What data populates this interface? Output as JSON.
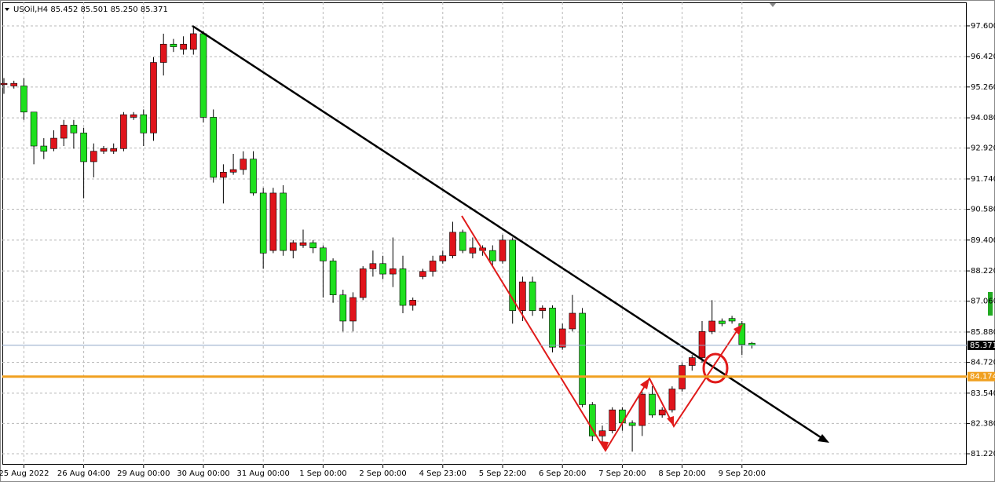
{
  "chart_data": {
    "type": "candlestick",
    "title": "USOil,H4  85.452 85.501 85.250 85.371",
    "categories": [
      null,
      null,
      "25 Aug 2022",
      null,
      null,
      null,
      null,
      null,
      "26 Aug 04:00",
      null,
      null,
      null,
      null,
      null,
      "29 Aug 00:00",
      null,
      null,
      null,
      null,
      null,
      "30 Aug 00:00",
      null,
      null,
      null,
      null,
      null,
      "31 Aug 00:00",
      null,
      null,
      null,
      null,
      null,
      "1 Sep 00:00",
      null,
      null,
      null,
      null,
      null,
      "2 Sep 00:00",
      null,
      null,
      null,
      null,
      null,
      "4 Sep 23:00",
      null,
      null,
      null,
      null,
      null,
      "5 Sep 22:00",
      null,
      null,
      null,
      null,
      null,
      "6 Sep 20:00",
      null,
      null,
      null,
      null,
      null,
      "7 Sep 20:00",
      null,
      null,
      null,
      null,
      null,
      "8 Sep 20:00",
      null,
      null,
      null,
      null,
      null,
      "9 Sep 20:00",
      null
    ],
    "open": [
      95.35,
      95.3,
      95.3,
      94.3,
      93.0,
      92.9,
      93.3,
      93.8,
      93.5,
      92.4,
      92.8,
      92.8,
      92.9,
      94.1,
      94.2,
      93.5,
      96.2,
      96.9,
      96.7,
      96.7,
      97.3,
      94.1,
      91.8,
      92.0,
      92.1,
      92.5,
      91.2,
      89.0,
      91.2,
      89.0,
      89.2,
      89.3,
      89.1,
      88.6,
      87.3,
      86.3,
      87.2,
      88.3,
      88.5,
      88.1,
      88.3,
      86.9,
      88.0,
      88.2,
      88.6,
      88.8,
      89.7,
      88.9,
      89.0,
      89.0,
      88.6,
      89.4,
      86.7,
      87.8,
      86.7,
      86.8,
      85.3,
      86.0,
      86.6,
      83.1,
      81.9,
      82.1,
      82.9,
      82.4,
      82.3,
      83.5,
      82.7,
      82.9,
      83.7,
      84.6,
      84.9,
      85.9,
      86.3,
      86.4,
      86.2,
      85.452
    ],
    "high": [
      95.6,
      95.5,
      95.6,
      94.3,
      93.3,
      93.6,
      94.0,
      94.0,
      93.7,
      93.1,
      93.0,
      93.1,
      94.3,
      94.3,
      94.4,
      96.4,
      97.3,
      97.1,
      97.2,
      97.6,
      97.4,
      94.4,
      92.3,
      92.7,
      92.8,
      92.8,
      91.4,
      91.4,
      91.5,
      89.4,
      89.8,
      89.4,
      89.2,
      88.7,
      87.5,
      87.4,
      88.4,
      89.0,
      88.8,
      89.5,
      88.8,
      87.2,
      88.3,
      88.8,
      89.0,
      90.1,
      89.8,
      89.5,
      89.2,
      89.2,
      89.6,
      89.5,
      88.0,
      88.0,
      86.9,
      86.9,
      86.2,
      87.3,
      86.8,
      83.2,
      82.3,
      83.0,
      83.0,
      82.5,
      83.6,
      83.8,
      83.0,
      83.8,
      84.7,
      85.0,
      86.3,
      87.1,
      86.4,
      86.5,
      86.3,
      85.501
    ],
    "low": [
      95.0,
      95.2,
      94.0,
      92.3,
      92.5,
      92.8,
      93.0,
      92.9,
      91.0,
      91.8,
      92.7,
      92.7,
      92.8,
      94.0,
      93.0,
      93.2,
      95.7,
      96.6,
      96.5,
      96.5,
      93.9,
      91.6,
      90.8,
      91.9,
      91.9,
      91.1,
      88.3,
      88.9,
      88.8,
      88.7,
      89.1,
      88.9,
      87.2,
      87.0,
      85.9,
      85.9,
      87.1,
      88.0,
      87.9,
      87.6,
      86.6,
      86.7,
      87.9,
      88.0,
      88.5,
      88.7,
      88.9,
      88.7,
      88.8,
      88.4,
      88.5,
      86.2,
      86.3,
      86.5,
      86.4,
      85.1,
      85.2,
      85.9,
      83.0,
      81.7,
      81.6,
      82.0,
      82.1,
      81.3,
      81.9,
      82.6,
      82.6,
      82.8,
      83.6,
      84.4,
      84.7,
      85.8,
      86.1,
      86.2,
      85.0,
      85.25
    ],
    "close": [
      95.4,
      95.4,
      94.3,
      93.0,
      92.8,
      93.3,
      93.8,
      93.5,
      92.4,
      92.8,
      92.9,
      92.9,
      94.2,
      94.2,
      93.5,
      96.2,
      96.9,
      96.8,
      96.9,
      97.3,
      94.1,
      91.8,
      92.0,
      92.1,
      92.5,
      91.2,
      88.9,
      91.2,
      89.0,
      89.3,
      89.3,
      89.1,
      88.6,
      87.3,
      86.3,
      87.2,
      88.3,
      88.5,
      88.1,
      88.3,
      86.9,
      87.1,
      88.2,
      88.6,
      88.8,
      89.7,
      89.0,
      89.1,
      89.1,
      88.6,
      89.4,
      86.7,
      87.8,
      86.7,
      86.8,
      85.3,
      86.0,
      86.6,
      83.1,
      81.9,
      82.1,
      82.9,
      82.4,
      82.3,
      83.5,
      82.7,
      82.9,
      83.7,
      84.6,
      84.9,
      85.9,
      86.3,
      86.2,
      86.3,
      85.4,
      85.371
    ],
    "up_color": "#e0141b",
    "down_color": "#1ee01e",
    "ylim": [
      80.8,
      98.5
    ],
    "yticks": [
      {
        "value": 97.6,
        "label": "97.600"
      },
      {
        "value": 96.42,
        "label": "96.420"
      },
      {
        "value": 95.26,
        "label": "95.260"
      },
      {
        "value": 94.08,
        "label": "94.080"
      },
      {
        "value": 92.92,
        "label": "92.920"
      },
      {
        "value": 91.74,
        "label": "91.740"
      },
      {
        "value": 90.58,
        "label": "90.580"
      },
      {
        "value": 89.4,
        "label": "89.400"
      },
      {
        "value": 88.22,
        "label": "88.220"
      },
      {
        "value": 87.06,
        "label": "87.060"
      },
      {
        "value": 85.88,
        "label": "85.880"
      },
      {
        "value": 84.72,
        "label": "84.720"
      },
      {
        "value": 83.54,
        "label": "83.540"
      },
      {
        "value": 82.38,
        "label": "82.380"
      },
      {
        "value": 81.22,
        "label": "81.220"
      }
    ],
    "grid": true,
    "current_price": 85.371,
    "level": {
      "value": 84.174,
      "color": "#f0a020"
    }
  }
}
